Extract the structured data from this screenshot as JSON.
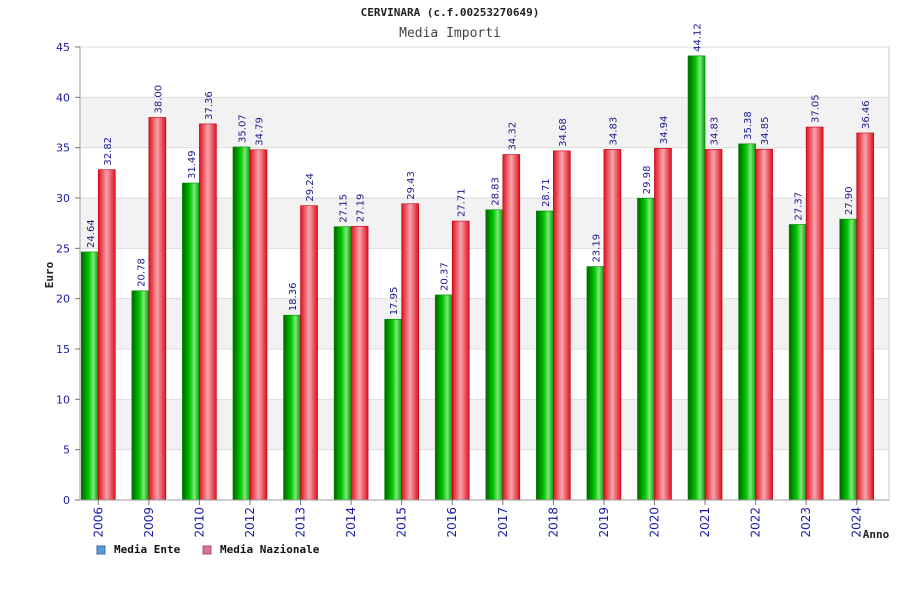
{
  "chart_data": {
    "type": "bar",
    "title": "CERVINARA (c.f.00253270649)",
    "subtitle": "Media Importi",
    "xlabel": "Anno",
    "ylabel": "Euro",
    "ylim": [
      0,
      45
    ],
    "yticks": [
      0,
      5,
      10,
      15,
      20,
      25,
      30,
      35,
      40,
      45
    ],
    "ytick_labels": [
      "0",
      "5",
      "10",
      "15",
      "20",
      "25",
      "30",
      "35",
      "40",
      "45"
    ],
    "categories": [
      "2006",
      "2009",
      "2010",
      "2012",
      "2013",
      "2014",
      "2015",
      "2016",
      "2017",
      "2018",
      "2019",
      "2020",
      "2021",
      "2022",
      "2023",
      "2024"
    ],
    "series": [
      {
        "name": "Media Ente",
        "color": "#00b400",
        "legend_color": "#5b9bd5",
        "values": [
          24.64,
          20.78,
          31.49,
          35.07,
          18.36,
          27.15,
          17.95,
          20.37,
          28.83,
          28.71,
          23.19,
          29.98,
          44.12,
          35.38,
          27.37,
          27.9
        ],
        "labels": [
          "24.64",
          "20.78",
          "31.49",
          "35.07",
          "18.36",
          "27.15",
          "17.95",
          "20.37",
          "28.83",
          "28.71",
          "23.19",
          "29.98",
          "44.12",
          "35.38",
          "27.37",
          "27.90"
        ]
      },
      {
        "name": "Media Nazionale",
        "color": "#e8141e",
        "legend_color": "#d9739a",
        "values": [
          32.82,
          38.0,
          37.36,
          34.79,
          29.24,
          27.19,
          29.43,
          27.71,
          34.32,
          34.68,
          34.83,
          34.94,
          34.83,
          34.85,
          37.05,
          36.46
        ],
        "labels": [
          "32.82",
          "38.00",
          "37.36",
          "34.79",
          "29.24",
          "27.19",
          "29.43",
          "27.71",
          "34.32",
          "34.68",
          "34.83",
          "34.94",
          "34.83",
          "34.85",
          "37.05",
          "36.46"
        ]
      }
    ],
    "grid": true,
    "legend_position": "bottom-left"
  }
}
